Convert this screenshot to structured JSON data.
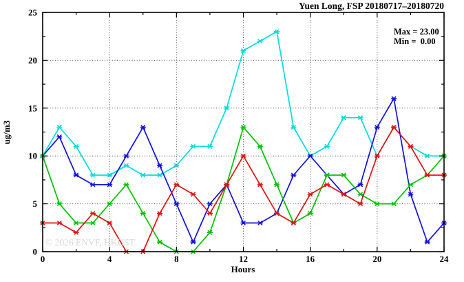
{
  "header": {
    "title": "Yuen Long, FSP 20180717–20180720"
  },
  "annotation": {
    "max_line": "Max = 23.00",
    "min_line": "Min =  0.00"
  },
  "watermark": "© 2026 ENVF, HKUST",
  "axes": {
    "xlabel": "Hours",
    "ylabel": "ug/m3",
    "x_tick_labels": [
      "0",
      "4",
      "8",
      "12",
      "16",
      "20",
      "24"
    ],
    "y_tick_labels": [
      "0",
      "5",
      "10",
      "15",
      "20",
      "25"
    ]
  },
  "chart_data": {
    "type": "line",
    "title": "Yuen Long, FSP 20180717–20180720",
    "xlabel": "Hours",
    "ylabel": "ug/m3",
    "xlim": [
      0,
      24
    ],
    "ylim": [
      0,
      25
    ],
    "xticks": [
      0,
      4,
      8,
      12,
      16,
      20,
      24
    ],
    "yticks": [
      0,
      5,
      10,
      15,
      20,
      25
    ],
    "x_minor_step": 2,
    "y_minor_step": 2.5,
    "grid": "dotted-at-major-ticks",
    "legend_position": "none",
    "marker": "x-star",
    "x": [
      0,
      1,
      2,
      3,
      4,
      5,
      6,
      7,
      8,
      9,
      10,
      11,
      12,
      13,
      14,
      15,
      16,
      17,
      18,
      19,
      20,
      21,
      22,
      23,
      24
    ],
    "series": [
      {
        "name": "cyan-series",
        "color": "#00dddd",
        "values": [
          10,
          13,
          11,
          8,
          8,
          9,
          8,
          8,
          9,
          11,
          11,
          15,
          21,
          22,
          23,
          13,
          10,
          11,
          14,
          14,
          10,
          13,
          11,
          10,
          10
        ]
      },
      {
        "name": "blue-series",
        "color": "#1111dd",
        "values": [
          10,
          12,
          8,
          7,
          7,
          10,
          13,
          9,
          5,
          1,
          5,
          7,
          3,
          3,
          4,
          8,
          10,
          8,
          6,
          7,
          13,
          16,
          6,
          1,
          3
        ]
      },
      {
        "name": "green-series",
        "color": "#00c300",
        "values": [
          10,
          5,
          3,
          3,
          5,
          7,
          4,
          1,
          0,
          0,
          2,
          7,
          13,
          11,
          7,
          3,
          4,
          8,
          8,
          6,
          5,
          5,
          7,
          8,
          10
        ]
      },
      {
        "name": "red-series",
        "color": "#e01010",
        "values": [
          3,
          3,
          2,
          4,
          3,
          0,
          0,
          4,
          7,
          6,
          4,
          7,
          10,
          7,
          4,
          3,
          6,
          7,
          6,
          5,
          10,
          13,
          11,
          8,
          8
        ]
      }
    ],
    "stats": {
      "max": 23.0,
      "min": 0.0
    }
  },
  "colors": {
    "border": "#000000",
    "grid": "#444444",
    "watermark": "#d6d6d6",
    "background": "#ffffff"
  }
}
